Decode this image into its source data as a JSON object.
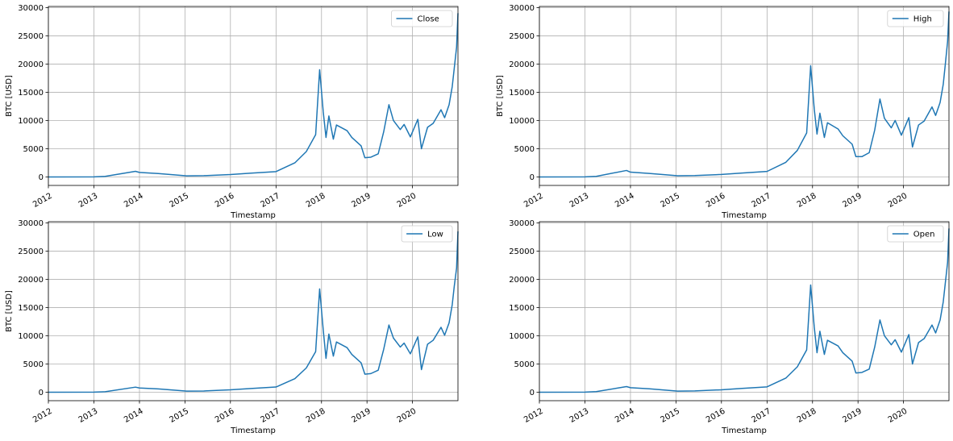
{
  "chart_data": [
    {
      "type": "line",
      "xlabel": "Timestamp",
      "ylabel": "BTC [USD]",
      "xlim": [
        "2012-01-01",
        "2020-12-31"
      ],
      "ylim": [
        -1500,
        30200
      ],
      "xticks": [
        "2012",
        "2013",
        "2014",
        "2015",
        "2016",
        "2017",
        "2018",
        "2019",
        "2020"
      ],
      "yticks": [
        "0",
        "5000",
        "10000",
        "15000",
        "20000",
        "25000",
        "30000"
      ],
      "grid": true,
      "legend_position": "top-right",
      "color": "#1f77b4",
      "series": [
        {
          "name": "Close",
          "x": [
            "2012-01-01",
            "2013-01-01",
            "2013-04-01",
            "2013-11-30",
            "2014-01-01",
            "2014-06-01",
            "2015-01-15",
            "2015-06-01",
            "2016-01-01",
            "2016-06-15",
            "2017-01-01",
            "2017-06-01",
            "2017-09-01",
            "2017-11-15",
            "2017-12-17",
            "2018-01-15",
            "2018-02-06",
            "2018-03-01",
            "2018-04-06",
            "2018-05-01",
            "2018-07-25",
            "2018-09-01",
            "2018-11-15",
            "2018-12-15",
            "2019-02-01",
            "2019-04-01",
            "2019-05-15",
            "2019-06-26",
            "2019-08-01",
            "2019-09-25",
            "2019-10-26",
            "2019-12-15",
            "2020-02-13",
            "2020-03-13",
            "2020-05-01",
            "2020-06-15",
            "2020-08-17",
            "2020-09-15",
            "2020-10-21",
            "2020-11-15",
            "2020-12-01",
            "2020-12-20",
            "2020-12-31"
          ],
          "values": [
            5,
            13,
            100,
            1000,
            800,
            600,
            200,
            230,
            430,
            680,
            950,
            2500,
            4500,
            7500,
            19000,
            11500,
            7000,
            10800,
            6700,
            9200,
            8200,
            7000,
            5500,
            3400,
            3500,
            4100,
            8000,
            12800,
            10000,
            8400,
            9300,
            7100,
            10200,
            5000,
            8800,
            9500,
            11900,
            10500,
            12800,
            16000,
            19200,
            23000,
            29000
          ]
        }
      ]
    },
    {
      "type": "line",
      "xlabel": "Timestamp",
      "ylabel": "BTC [USD]",
      "xlim": [
        "2012-01-01",
        "2020-12-31"
      ],
      "ylim": [
        -1500,
        30200
      ],
      "xticks": [
        "2012",
        "2013",
        "2014",
        "2015",
        "2016",
        "2017",
        "2018",
        "2019",
        "2020"
      ],
      "yticks": [
        "0",
        "5000",
        "10000",
        "15000",
        "20000",
        "25000",
        "30000"
      ],
      "grid": true,
      "legend_position": "top-right",
      "color": "#1f77b4",
      "series": [
        {
          "name": "High",
          "x": [
            "2012-01-01",
            "2013-01-01",
            "2013-04-01",
            "2013-11-30",
            "2014-01-01",
            "2014-06-01",
            "2015-01-15",
            "2015-06-01",
            "2016-01-01",
            "2016-06-15",
            "2017-01-01",
            "2017-06-01",
            "2017-09-01",
            "2017-11-15",
            "2017-12-17",
            "2018-01-15",
            "2018-02-06",
            "2018-03-01",
            "2018-04-06",
            "2018-05-01",
            "2018-07-25",
            "2018-09-01",
            "2018-11-15",
            "2018-12-15",
            "2019-02-01",
            "2019-04-01",
            "2019-05-15",
            "2019-06-26",
            "2019-08-01",
            "2019-09-25",
            "2019-10-26",
            "2019-12-15",
            "2020-02-13",
            "2020-03-13",
            "2020-05-01",
            "2020-06-15",
            "2020-08-17",
            "2020-09-15",
            "2020-10-21",
            "2020-11-15",
            "2020-12-01",
            "2020-12-20",
            "2020-12-31"
          ],
          "values": [
            5,
            14,
            110,
            1150,
            850,
            620,
            210,
            240,
            440,
            700,
            980,
            2600,
            4700,
            7800,
            19700,
            12000,
            7600,
            11300,
            7000,
            9600,
            8500,
            7300,
            5800,
            3600,
            3600,
            4300,
            8300,
            13800,
            10400,
            8700,
            10000,
            7400,
            10500,
            5300,
            9200,
            9900,
            12400,
            10900,
            13200,
            16400,
            19800,
            24000,
            29300
          ]
        }
      ]
    },
    {
      "type": "line",
      "xlabel": "Timestamp",
      "ylabel": "BTC [USD]",
      "xlim": [
        "2012-01-01",
        "2020-12-31"
      ],
      "ylim": [
        -1500,
        30200
      ],
      "xticks": [
        "2012",
        "2013",
        "2014",
        "2015",
        "2016",
        "2017",
        "2018",
        "2019",
        "2020"
      ],
      "yticks": [
        "0",
        "5000",
        "10000",
        "15000",
        "20000",
        "25000",
        "30000"
      ],
      "grid": true,
      "legend_position": "top-right",
      "color": "#1f77b4",
      "series": [
        {
          "name": "Low",
          "x": [
            "2012-01-01",
            "2013-01-01",
            "2013-04-01",
            "2013-11-30",
            "2014-01-01",
            "2014-06-01",
            "2015-01-15",
            "2015-06-01",
            "2016-01-01",
            "2016-06-15",
            "2017-01-01",
            "2017-06-01",
            "2017-09-01",
            "2017-11-15",
            "2017-12-17",
            "2018-01-15",
            "2018-02-06",
            "2018-03-01",
            "2018-04-06",
            "2018-05-01",
            "2018-07-25",
            "2018-09-01",
            "2018-11-15",
            "2018-12-15",
            "2019-02-01",
            "2019-04-01",
            "2019-05-15",
            "2019-06-26",
            "2019-08-01",
            "2019-09-25",
            "2019-10-26",
            "2019-12-15",
            "2020-02-13",
            "2020-03-13",
            "2020-05-01",
            "2020-06-15",
            "2020-08-17",
            "2020-09-15",
            "2020-10-21",
            "2020-11-15",
            "2020-12-01",
            "2020-12-20",
            "2020-12-31"
          ],
          "values": [
            4,
            12,
            90,
            900,
            750,
            580,
            190,
            220,
            420,
            660,
            920,
            2400,
            4300,
            7200,
            18300,
            11000,
            6000,
            10300,
            6400,
            8900,
            7900,
            6700,
            5200,
            3200,
            3300,
            3900,
            7600,
            11900,
            9600,
            8000,
            8700,
            6800,
            9800,
            4000,
            8500,
            9200,
            11500,
            10100,
            12300,
            15500,
            18700,
            22000,
            28500
          ]
        }
      ]
    },
    {
      "type": "line",
      "xlabel": "Timestamp",
      "ylabel": "",
      "xlim": [
        "2012-01-01",
        "2020-12-31"
      ],
      "ylim": [
        -1500,
        30200
      ],
      "xticks": [
        "2012",
        "2013",
        "2014",
        "2015",
        "2016",
        "2017",
        "2018",
        "2019",
        "2020"
      ],
      "yticks": [
        "0",
        "5000",
        "10000",
        "15000",
        "20000",
        "25000",
        "30000"
      ],
      "grid": true,
      "legend_position": "top-right",
      "color": "#1f77b4",
      "series": [
        {
          "name": "Open",
          "x": [
            "2012-01-01",
            "2013-01-01",
            "2013-04-01",
            "2013-11-30",
            "2014-01-01",
            "2014-06-01",
            "2015-01-15",
            "2015-06-01",
            "2016-01-01",
            "2016-06-15",
            "2017-01-01",
            "2017-06-01",
            "2017-09-01",
            "2017-11-15",
            "2017-12-17",
            "2018-01-15",
            "2018-02-06",
            "2018-03-01",
            "2018-04-06",
            "2018-05-01",
            "2018-07-25",
            "2018-09-01",
            "2018-11-15",
            "2018-12-15",
            "2019-02-01",
            "2019-04-01",
            "2019-05-15",
            "2019-06-26",
            "2019-08-01",
            "2019-09-25",
            "2019-10-26",
            "2019-12-15",
            "2020-02-13",
            "2020-03-13",
            "2020-05-01",
            "2020-06-15",
            "2020-08-17",
            "2020-09-15",
            "2020-10-21",
            "2020-11-15",
            "2020-12-01",
            "2020-12-20",
            "2020-12-31"
          ],
          "values": [
            5,
            13,
            100,
            1000,
            800,
            600,
            200,
            230,
            430,
            680,
            950,
            2500,
            4500,
            7500,
            19000,
            11500,
            7000,
            10800,
            6700,
            9200,
            8200,
            7000,
            5500,
            3400,
            3500,
            4100,
            8000,
            12800,
            10000,
            8400,
            9300,
            7100,
            10200,
            5000,
            8800,
            9500,
            11900,
            10500,
            12800,
            16000,
            19200,
            23000,
            29000
          ]
        }
      ]
    }
  ]
}
